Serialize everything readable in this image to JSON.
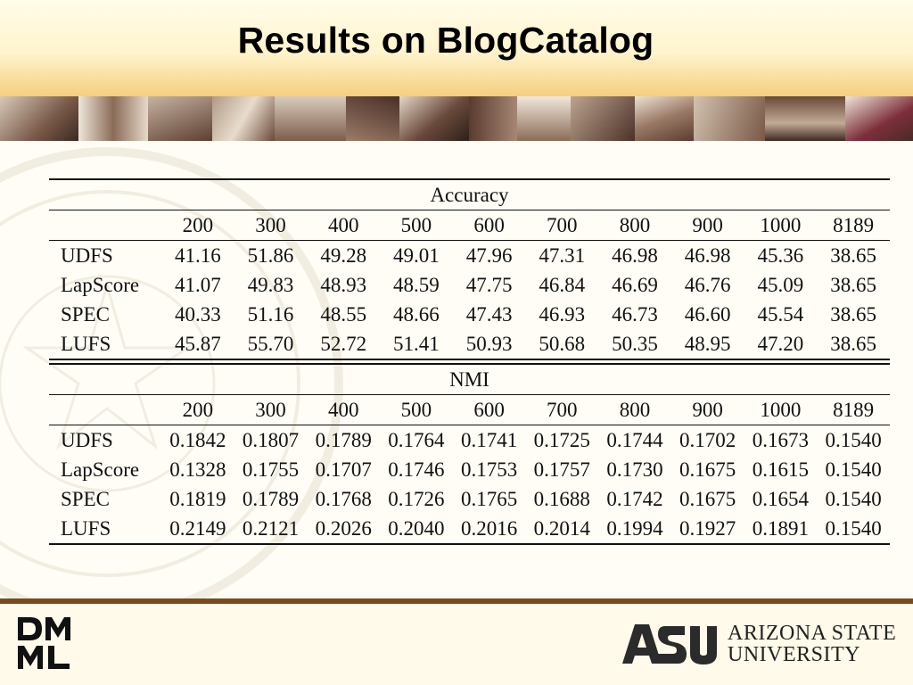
{
  "slide": {
    "title": "Results on BlogCatalog",
    "colors": {
      "header_top": "#fffce9",
      "header_bottom": "#f5cf7c",
      "footer_rule": "#7a4b1c",
      "photo_strip_tone": "#6b4535"
    }
  },
  "table": {
    "columns": [
      "200",
      "300",
      "400",
      "500",
      "600",
      "700",
      "800",
      "900",
      "1000",
      "8189"
    ],
    "sections": [
      {
        "caption": "Accuracy",
        "rows": [
          {
            "label": "UDFS",
            "values": [
              "41.16",
              "51.86",
              "49.28",
              "49.01",
              "47.96",
              "47.31",
              "46.98",
              "46.98",
              "45.36",
              "38.65"
            ]
          },
          {
            "label": "LapScore",
            "values": [
              "41.07",
              "49.83",
              "48.93",
              "48.59",
              "47.75",
              "46.84",
              "46.69",
              "46.76",
              "45.09",
              "38.65"
            ]
          },
          {
            "label": "SPEC",
            "values": [
              "40.33",
              "51.16",
              "48.55",
              "48.66",
              "47.43",
              "46.93",
              "46.73",
              "46.60",
              "45.54",
              "38.65"
            ]
          },
          {
            "label": "LUFS",
            "values": [
              "45.87",
              "55.70",
              "52.72",
              "51.41",
              "50.93",
              "50.68",
              "50.35",
              "48.95",
              "47.20",
              "38.65"
            ]
          }
        ]
      },
      {
        "caption": "NMI",
        "rows": [
          {
            "label": "UDFS",
            "values": [
              "0.1842",
              "0.1807",
              "0.1789",
              "0.1764",
              "0.1741",
              "0.1725",
              "0.1744",
              "0.1702",
              "0.1673",
              "0.1540"
            ]
          },
          {
            "label": "LapScore",
            "values": [
              "0.1328",
              "0.1755",
              "0.1707",
              "0.1746",
              "0.1753",
              "0.1757",
              "0.1730",
              "0.1675",
              "0.1615",
              "0.1540"
            ]
          },
          {
            "label": "SPEC",
            "values": [
              "0.1819",
              "0.1789",
              "0.1768",
              "0.1726",
              "0.1765",
              "0.1688",
              "0.1742",
              "0.1675",
              "0.1654",
              "0.1540"
            ]
          },
          {
            "label": "LUFS",
            "values": [
              "0.2149",
              "0.2121",
              "0.2026",
              "0.2040",
              "0.2016",
              "0.2014",
              "0.1994",
              "0.1927",
              "0.1891",
              "0.1540"
            ]
          }
        ]
      }
    ]
  },
  "logos": {
    "dmml": {
      "icon": "dmml-logo-icon"
    },
    "asu": {
      "icon": "asu-logo-icon",
      "line1": "ARIZONA STATE",
      "line2": "UNIVERSITY"
    }
  }
}
